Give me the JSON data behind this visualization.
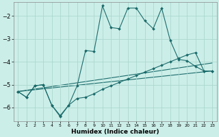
{
  "xlabel": "Humidex (Indice chaleur)",
  "background_color": "#cceee8",
  "grid_color": "#aad8d0",
  "line_color": "#1a6b6b",
  "xlim": [
    -0.5,
    23.5
  ],
  "ylim": [
    -6.6,
    -1.4
  ],
  "yticks": [
    -6,
    -5,
    -4,
    -3,
    -2
  ],
  "xticks": [
    0,
    1,
    2,
    3,
    4,
    5,
    6,
    7,
    8,
    9,
    10,
    11,
    12,
    13,
    14,
    15,
    16,
    17,
    18,
    19,
    20,
    21,
    22,
    23
  ],
  "line1_x": [
    0,
    1,
    2,
    3,
    4,
    5,
    6,
    7,
    8,
    9,
    10,
    11,
    12,
    13,
    14,
    15,
    16,
    17,
    18,
    19,
    20,
    21,
    22,
    23
  ],
  "line1_y": [
    -5.3,
    -5.55,
    -5.05,
    -5.0,
    -5.9,
    -6.4,
    -5.9,
    -5.05,
    -3.5,
    -3.55,
    -1.55,
    -2.5,
    -2.55,
    -1.65,
    -1.65,
    -2.2,
    -2.55,
    -1.65,
    -3.05,
    -3.9,
    -3.95,
    -4.2,
    -4.4,
    -4.4
  ],
  "line2_x": [
    0,
    1,
    2,
    3,
    4,
    5,
    6,
    7,
    8,
    9,
    10,
    11,
    12,
    13,
    14,
    15,
    16,
    17,
    18,
    19,
    20,
    21,
    22,
    23
  ],
  "line2_y": [
    -5.3,
    -5.55,
    -5.05,
    -5.0,
    -5.9,
    -6.35,
    -5.9,
    -5.6,
    -5.55,
    -5.4,
    -5.2,
    -5.05,
    -4.9,
    -4.75,
    -4.6,
    -4.45,
    -4.3,
    -4.15,
    -4.0,
    -3.85,
    -3.7,
    -3.6,
    -4.4,
    -4.4
  ],
  "line3_x": [
    0,
    23
  ],
  "line3_y": [
    -5.3,
    -4.4
  ],
  "line4_x": [
    0,
    23
  ],
  "line4_y": [
    -5.3,
    -4.05
  ]
}
